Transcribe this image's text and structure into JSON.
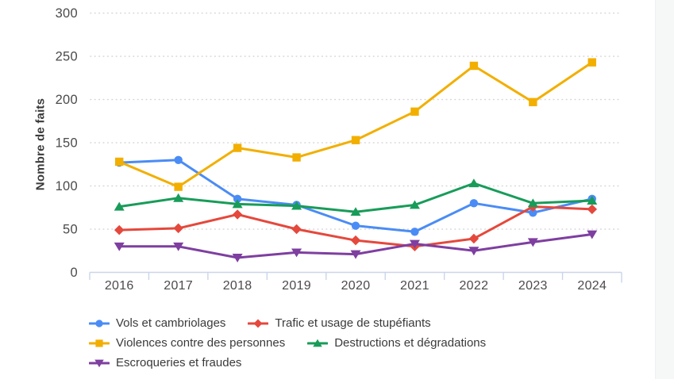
{
  "page": {
    "background": "#ffffff",
    "right_strip_color": "#f6f8f8"
  },
  "chart_data": {
    "type": "line",
    "title": "",
    "xlabel": "",
    "ylabel": "Nombre de faits",
    "ylim": [
      0,
      300
    ],
    "yticks": [
      0,
      50,
      100,
      150,
      200,
      250,
      300
    ],
    "grid": "horizontal dotted",
    "legend_position": "bottom-left",
    "categories": [
      "2016",
      "2017",
      "2018",
      "2019",
      "2020",
      "2021",
      "2022",
      "2023",
      "2024"
    ],
    "series": [
      {
        "name": "Vols et cambriolages",
        "color": "#4A8CF5",
        "marker": "circle",
        "values": [
          127,
          130,
          85,
          78,
          54,
          47,
          80,
          69,
          85
        ]
      },
      {
        "name": "Trafic et usage de stupéfiants",
        "color": "#E5483C",
        "marker": "diamond",
        "values": [
          49,
          51,
          67,
          50,
          37,
          30,
          39,
          76,
          73
        ]
      },
      {
        "name": "Violences contre des personnes",
        "color": "#F2AF00",
        "marker": "square",
        "values": [
          128,
          99,
          144,
          133,
          153,
          186,
          239,
          197,
          243
        ]
      },
      {
        "name": "Destructions et dégradations",
        "color": "#189C59",
        "marker": "triangle-up",
        "values": [
          76,
          86,
          79,
          77,
          70,
          78,
          103,
          80,
          83
        ]
      },
      {
        "name": "Escroqueries et fraudes",
        "color": "#7E3FA0",
        "marker": "triangle-down",
        "values": [
          30,
          30,
          17,
          23,
          21,
          33,
          25,
          35,
          44
        ]
      }
    ],
    "axis_colors": {
      "tick_label": "#4b4b4b",
      "axis_title": "#3a3a3a",
      "gridline": "#d6d6d6",
      "axis_band": "#c9d5ea"
    }
  }
}
